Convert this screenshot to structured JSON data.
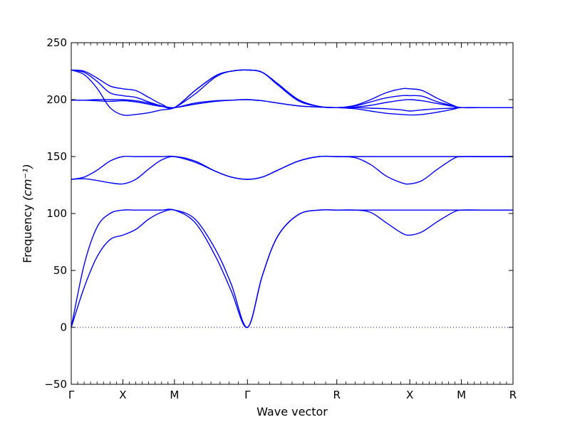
{
  "chart_data": {
    "type": "line",
    "title": "",
    "xlabel": "Wave vector",
    "ylabel": "Frequency",
    "ylabel_unit": "(cm⁻¹)",
    "ylim": [
      -50,
      250
    ],
    "yticks": [
      -50,
      0,
      50,
      100,
      150,
      200,
      250
    ],
    "path_points": [
      {
        "label": "Γ",
        "x": 0
      },
      {
        "label": "X",
        "x": 0.5
      },
      {
        "label": "M",
        "x": 1.0
      },
      {
        "label": "Γ",
        "x": 1.707
      },
      {
        "label": "R",
        "x": 2.573
      },
      {
        "label": "X",
        "x": 3.28
      },
      {
        "label": "M",
        "x": 3.78
      },
      {
        "label": "R",
        "x": 4.28
      }
    ],
    "zero_line": true,
    "line_color": "#0000ff",
    "series": [
      {
        "x": [
          0,
          0.125,
          0.25,
          0.375,
          0.5,
          0.625,
          0.75,
          0.875,
          1.0,
          1.2,
          1.4,
          1.55,
          1.707,
          1.85,
          2.0,
          2.2,
          2.4,
          2.573,
          2.75,
          2.9,
          3.05,
          3.2,
          3.28,
          3.4,
          3.55,
          3.7,
          3.78,
          4.0,
          4.28
        ],
        "y": [
          0,
          35,
          62,
          77,
          81,
          86,
          95,
          101,
          103,
          95,
          68,
          38,
          0,
          45,
          80,
          99,
          103,
          103,
          103,
          101,
          92,
          83,
          81,
          84,
          93,
          101,
          103,
          103,
          103
        ]
      },
      {
        "x": [
          0,
          0.125,
          0.25,
          0.375,
          0.5,
          0.625,
          0.75,
          0.875,
          1.0,
          1.2,
          1.4,
          1.55,
          1.707,
          1.85,
          2.0,
          2.2,
          2.4,
          2.573,
          2.75,
          2.9,
          3.05,
          3.2,
          3.28,
          3.4,
          3.55,
          3.7,
          3.78,
          4.0,
          4.28
        ],
        "y": [
          0,
          55,
          88,
          100,
          103,
          103,
          103,
          103,
          103,
          92,
          62,
          32,
          0,
          45,
          80,
          99,
          103,
          103,
          103,
          103,
          103,
          103,
          103,
          103,
          103,
          103,
          103,
          103,
          103
        ]
      },
      {
        "x": [
          0,
          0.125,
          0.25,
          0.375,
          0.5,
          0.625,
          0.75,
          0.875,
          1.0,
          1.2,
          1.4,
          1.55,
          1.707,
          1.85,
          2.0,
          2.2,
          2.4,
          2.573,
          2.75,
          2.9,
          3.05,
          3.2,
          3.28,
          3.4,
          3.55,
          3.7,
          3.78,
          4.0,
          4.28
        ],
        "y": [
          130,
          130.5,
          129,
          127,
          126,
          130,
          139,
          147,
          150,
          146,
          137,
          132,
          130,
          132,
          138,
          146,
          150,
          150,
          149,
          143,
          133,
          127,
          126,
          129,
          139,
          148,
          150,
          150,
          150
        ]
      },
      {
        "x": [
          0,
          0.125,
          0.25,
          0.375,
          0.5,
          0.625,
          0.75,
          0.875,
          1.0,
          1.2,
          1.4,
          1.55,
          1.707,
          1.85,
          2.0,
          2.2,
          2.4,
          2.573,
          2.75,
          2.9,
          3.05,
          3.2,
          3.28,
          3.4,
          3.55,
          3.7,
          3.78,
          4.0,
          4.28
        ],
        "y": [
          130,
          132,
          138,
          146,
          150,
          150,
          150,
          150,
          150,
          145,
          137,
          132,
          130,
          132,
          138,
          146,
          150,
          150,
          150,
          150,
          150,
          150,
          150,
          150,
          150,
          150,
          150,
          150,
          150
        ]
      },
      {
        "x": [
          0,
          0.125,
          0.25,
          0.375,
          0.5,
          0.625,
          0.75,
          0.875,
          1.0,
          1.2,
          1.4,
          1.55,
          1.707,
          1.85,
          2.0,
          2.2,
          2.4,
          2.573,
          2.75,
          2.9,
          3.05,
          3.2,
          3.28,
          3.4,
          3.55,
          3.7,
          3.78,
          4.0,
          4.28
        ],
        "y": [
          199.5,
          199.5,
          199,
          198.5,
          199,
          198,
          196,
          194,
          193,
          196,
          198.5,
          199.5,
          200,
          199,
          197,
          194.5,
          193.5,
          193,
          193,
          192.5,
          192,
          191,
          190,
          191,
          192,
          192.5,
          193,
          193,
          193
        ]
      },
      {
        "x": [
          0,
          0.125,
          0.25,
          0.375,
          0.5,
          0.625,
          0.75,
          0.875,
          1.0,
          1.2,
          1.4,
          1.55,
          1.707,
          1.85,
          2.0,
          2.2,
          2.4,
          2.573,
          2.75,
          2.9,
          3.05,
          3.2,
          3.28,
          3.4,
          3.55,
          3.7,
          3.78,
          4.0,
          4.28
        ],
        "y": [
          199.5,
          199.5,
          200,
          200,
          200,
          199,
          197,
          194.5,
          193,
          197,
          199,
          199.5,
          200,
          199,
          197,
          194.5,
          193.5,
          193,
          193.5,
          195,
          197.5,
          199.5,
          200,
          199,
          196.5,
          194,
          193,
          193,
          193
        ]
      },
      {
        "x": [
          0,
          0.125,
          0.25,
          0.375,
          0.5,
          0.625,
          0.75,
          0.875,
          1.0,
          1.2,
          1.4,
          1.55,
          1.707,
          1.85,
          2.0,
          2.2,
          2.4,
          2.573,
          2.75,
          2.9,
          3.05,
          3.2,
          3.28,
          3.4,
          3.55,
          3.7,
          3.78,
          4.0,
          4.28
        ],
        "y": [
          226,
          222,
          210,
          193,
          186.5,
          187,
          188.5,
          191,
          193,
          205,
          220,
          225,
          226,
          224,
          213,
          199,
          194,
          193,
          192,
          190,
          188,
          187,
          186.5,
          187,
          189,
          191.5,
          193,
          193,
          193
        ]
      },
      {
        "x": [
          0,
          0.125,
          0.25,
          0.375,
          0.5,
          0.625,
          0.75,
          0.875,
          1.0,
          1.2,
          1.4,
          1.55,
          1.707,
          1.85,
          2.0,
          2.2,
          2.4,
          2.573,
          2.75,
          2.9,
          3.05,
          3.2,
          3.28,
          3.4,
          3.55,
          3.7,
          3.78,
          4.0,
          4.28
        ],
        "y": [
          226,
          224,
          216,
          206,
          203.5,
          202,
          198,
          194.5,
          193,
          208,
          221,
          225,
          226,
          224,
          214,
          200,
          194,
          193,
          194.5,
          198,
          201.5,
          203.5,
          203.5,
          203,
          198,
          194.5,
          193,
          193,
          193
        ]
      },
      {
        "x": [
          0,
          0.125,
          0.25,
          0.375,
          0.5,
          0.625,
          0.75,
          0.875,
          1.0,
          1.2,
          1.4,
          1.55,
          1.707,
          1.85,
          2.0,
          2.2,
          2.4,
          2.573,
          2.75,
          2.9,
          3.05,
          3.2,
          3.28,
          3.4,
          3.55,
          3.7,
          3.78,
          4.0,
          4.28
        ],
        "y": [
          226,
          225,
          219,
          212,
          209.5,
          208,
          202,
          196,
          193,
          208,
          221,
          225,
          226,
          224,
          214,
          200,
          194,
          193,
          195,
          200,
          206,
          209.5,
          209.5,
          208,
          201,
          195,
          193,
          193,
          193
        ]
      }
    ]
  }
}
